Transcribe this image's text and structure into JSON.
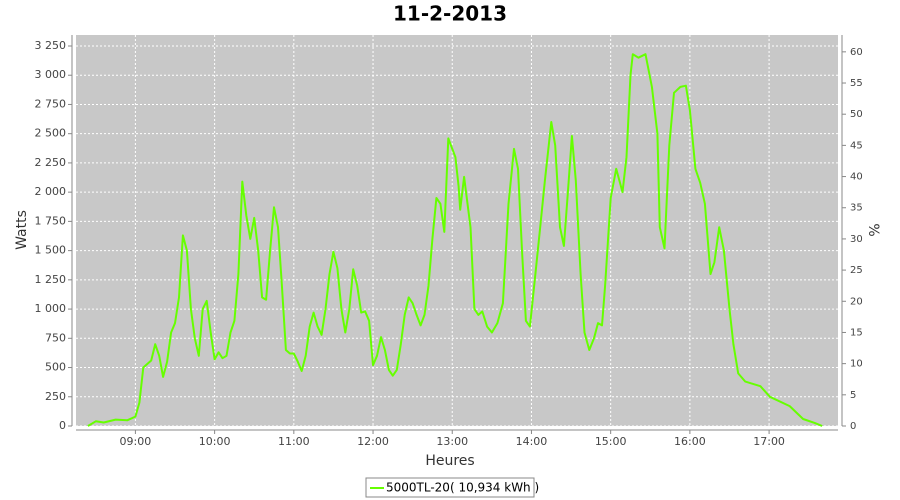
{
  "chart_data": {
    "type": "line",
    "title": "11-2-2013",
    "x_label": "Heures",
    "y_label": "Watts",
    "y2_label": "%",
    "grid": true,
    "legend": "bottom",
    "xlim": [
      8.25,
      17.87
    ],
    "xticks": [
      {
        "value": 9,
        "label": "09:00"
      },
      {
        "value": 10,
        "label": "10:00"
      },
      {
        "value": 11,
        "label": "11:00"
      },
      {
        "value": 12,
        "label": "12:00"
      },
      {
        "value": 13,
        "label": "13:00"
      },
      {
        "value": 14,
        "label": "14:00"
      },
      {
        "value": 15,
        "label": "15:00"
      },
      {
        "value": 16,
        "label": "16:00"
      },
      {
        "value": 17,
        "label": "17:00"
      }
    ],
    "ylim": [
      0,
      3344
    ],
    "yticks": [
      0,
      250,
      500,
      750,
      {
        "value": 1000,
        "label": "1 000"
      },
      {
        "value": 1250,
        "label": "1 250"
      },
      {
        "value": 1500,
        "label": "1 500"
      },
      {
        "value": 1750,
        "label": "1 750"
      },
      {
        "value": 2000,
        "label": "2 000"
      },
      {
        "value": 2250,
        "label": "2 250"
      },
      {
        "value": 2500,
        "label": "2 500"
      },
      {
        "value": 2750,
        "label": "2 750"
      },
      {
        "value": 3000,
        "label": "3 000"
      },
      {
        "value": 3250,
        "label": "3 250"
      }
    ],
    "y2lim": [
      0,
      62.7
    ],
    "y2ticks": [
      0,
      5,
      10,
      15,
      20,
      25,
      30,
      35,
      40,
      45,
      50,
      55,
      60
    ],
    "x": [
      8.4,
      8.5,
      8.6,
      8.75,
      8.9,
      9.0,
      9.05,
      9.1,
      9.2,
      9.25,
      9.3,
      9.35,
      9.4,
      9.45,
      9.5,
      9.55,
      9.6,
      9.65,
      9.7,
      9.75,
      9.8,
      9.85,
      9.9,
      9.95,
      10.0,
      10.05,
      10.1,
      10.15,
      10.2,
      10.25,
      10.3,
      10.35,
      10.4,
      10.45,
      10.5,
      10.55,
      10.6,
      10.65,
      10.7,
      10.75,
      10.8,
      10.85,
      10.9,
      10.95,
      11.0,
      11.05,
      11.1,
      11.15,
      11.2,
      11.25,
      11.3,
      11.35,
      11.4,
      11.45,
      11.5,
      11.55,
      11.6,
      11.65,
      11.7,
      11.75,
      11.8,
      11.85,
      11.9,
      11.95,
      12.0,
      12.05,
      12.1,
      12.15,
      12.2,
      12.25,
      12.3,
      12.35,
      12.4,
      12.45,
      12.5,
      12.55,
      12.6,
      12.65,
      12.7,
      12.75,
      12.8,
      12.85,
      12.9,
      12.95,
      13.04,
      13.08,
      13.1,
      13.15,
      13.23,
      13.28,
      13.33,
      13.38,
      13.44,
      13.5,
      13.57,
      13.64,
      13.71,
      13.78,
      13.83,
      13.88,
      13.93,
      13.98,
      14.05,
      14.11,
      14.17,
      14.25,
      14.3,
      14.36,
      14.41,
      14.46,
      14.51,
      14.56,
      14.62,
      14.67,
      14.73,
      14.79,
      14.84,
      14.89,
      14.93,
      15.0,
      15.07,
      15.15,
      15.2,
      15.25,
      15.28,
      15.35,
      15.44,
      15.52,
      15.59,
      15.62,
      15.68,
      15.74,
      15.8,
      15.88,
      15.95,
      16.0,
      16.07,
      16.13,
      16.19,
      16.26,
      16.31,
      16.37,
      16.43,
      16.5,
      16.55,
      16.61,
      16.7,
      16.89,
      17.01,
      17.26,
      17.43,
      17.58,
      17.67
    ],
    "series": [
      {
        "name": "5000TL-20( 10,934 kWh )",
        "color": "#66ff00",
        "values": [
          0,
          40,
          30,
          55,
          50,
          80,
          200,
          500,
          560,
          700,
          600,
          420,
          550,
          800,
          880,
          1100,
          1630,
          1500,
          1000,
          750,
          600,
          1000,
          1070,
          800,
          570,
          630,
          580,
          600,
          800,
          900,
          1300,
          2090,
          1800,
          1600,
          1780,
          1500,
          1100,
          1080,
          1500,
          1870,
          1700,
          1200,
          650,
          620,
          620,
          550,
          470,
          600,
          850,
          970,
          850,
          780,
          1000,
          1300,
          1490,
          1350,
          1000,
          800,
          1000,
          1340,
          1200,
          970,
          980,
          900,
          520,
          600,
          760,
          650,
          480,
          430,
          480,
          700,
          950,
          1100,
          1050,
          950,
          860,
          950,
          1200,
          1600,
          1950,
          1900,
          1660,
          2460,
          2300,
          2050,
          1850,
          2130,
          1700,
          1000,
          950,
          980,
          850,
          800,
          880,
          1050,
          1900,
          2370,
          2200,
          1500,
          900,
          850,
          1300,
          1700,
          2100,
          2600,
          2400,
          1700,
          1540,
          2000,
          2480,
          2100,
          1300,
          800,
          650,
          750,
          880,
          860,
          1200,
          1950,
          2200,
          2000,
          2300,
          3000,
          3180,
          3150,
          3180,
          2900,
          2500,
          1700,
          1520,
          2400,
          2850,
          2900,
          2910,
          2700,
          2200,
          2080,
          1900,
          1300,
          1400,
          1700,
          1500,
          1000,
          700,
          450,
          380,
          340,
          250,
          170,
          60,
          25,
          0
        ]
      }
    ]
  }
}
